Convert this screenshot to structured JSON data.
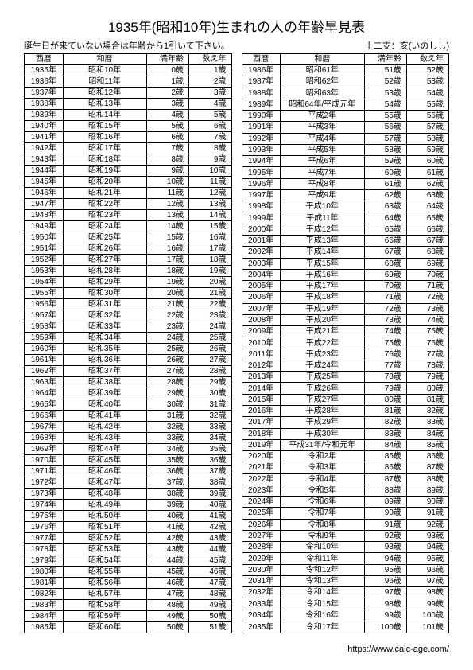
{
  "title": "1935年(昭和10年)生まれの人の年齢早見表",
  "subtitle_left": "誕生日が来ていない場合は年齢から1引いて下さい。",
  "subtitle_right": "十二支：亥(いのしし)",
  "footer": "https://www.calc-age.com/",
  "headers": {
    "seireki": "西暦",
    "wareki": "和暦",
    "man": "満年齢",
    "kazoe": "数え年"
  },
  "left_rows": [
    [
      "1935年",
      "昭和10年",
      "0歳",
      "1歳"
    ],
    [
      "1936年",
      "昭和11年",
      "1歳",
      "2歳"
    ],
    [
      "1937年",
      "昭和12年",
      "2歳",
      "3歳"
    ],
    [
      "1938年",
      "昭和13年",
      "3歳",
      "4歳"
    ],
    [
      "1939年",
      "昭和14年",
      "4歳",
      "5歳"
    ],
    [
      "1940年",
      "昭和15年",
      "5歳",
      "6歳"
    ],
    [
      "1941年",
      "昭和16年",
      "6歳",
      "7歳"
    ],
    [
      "1942年",
      "昭和17年",
      "7歳",
      "8歳"
    ],
    [
      "1943年",
      "昭和18年",
      "8歳",
      "9歳"
    ],
    [
      "1944年",
      "昭和19年",
      "9歳",
      "10歳"
    ],
    [
      "1945年",
      "昭和20年",
      "10歳",
      "11歳"
    ],
    [
      "1946年",
      "昭和21年",
      "11歳",
      "12歳"
    ],
    [
      "1947年",
      "昭和22年",
      "12歳",
      "13歳"
    ],
    [
      "1948年",
      "昭和23年",
      "13歳",
      "14歳"
    ],
    [
      "1949年",
      "昭和24年",
      "14歳",
      "15歳"
    ],
    [
      "1950年",
      "昭和25年",
      "15歳",
      "16歳"
    ],
    [
      "1951年",
      "昭和26年",
      "16歳",
      "17歳"
    ],
    [
      "1952年",
      "昭和27年",
      "17歳",
      "18歳"
    ],
    [
      "1953年",
      "昭和28年",
      "18歳",
      "19歳"
    ],
    [
      "1954年",
      "昭和29年",
      "19歳",
      "20歳"
    ],
    [
      "1955年",
      "昭和30年",
      "20歳",
      "21歳"
    ],
    [
      "1956年",
      "昭和31年",
      "21歳",
      "22歳"
    ],
    [
      "1957年",
      "昭和32年",
      "22歳",
      "23歳"
    ],
    [
      "1958年",
      "昭和33年",
      "23歳",
      "24歳"
    ],
    [
      "1959年",
      "昭和34年",
      "24歳",
      "25歳"
    ],
    [
      "1960年",
      "昭和35年",
      "25歳",
      "26歳"
    ],
    [
      "1961年",
      "昭和36年",
      "26歳",
      "27歳"
    ],
    [
      "1962年",
      "昭和37年",
      "27歳",
      "28歳"
    ],
    [
      "1963年",
      "昭和38年",
      "28歳",
      "29歳"
    ],
    [
      "1964年",
      "昭和39年",
      "29歳",
      "30歳"
    ],
    [
      "1965年",
      "昭和40年",
      "30歳",
      "31歳"
    ],
    [
      "1966年",
      "昭和41年",
      "31歳",
      "32歳"
    ],
    [
      "1967年",
      "昭和42年",
      "32歳",
      "33歳"
    ],
    [
      "1968年",
      "昭和43年",
      "33歳",
      "34歳"
    ],
    [
      "1969年",
      "昭和44年",
      "34歳",
      "35歳"
    ],
    [
      "1970年",
      "昭和45年",
      "35歳",
      "36歳"
    ],
    [
      "1971年",
      "昭和46年",
      "36歳",
      "37歳"
    ],
    [
      "1972年",
      "昭和47年",
      "37歳",
      "38歳"
    ],
    [
      "1973年",
      "昭和48年",
      "38歳",
      "39歳"
    ],
    [
      "1974年",
      "昭和49年",
      "39歳",
      "40歳"
    ],
    [
      "1975年",
      "昭和50年",
      "40歳",
      "41歳"
    ],
    [
      "1976年",
      "昭和51年",
      "41歳",
      "42歳"
    ],
    [
      "1977年",
      "昭和52年",
      "42歳",
      "43歳"
    ],
    [
      "1978年",
      "昭和53年",
      "43歳",
      "44歳"
    ],
    [
      "1979年",
      "昭和54年",
      "44歳",
      "45歳"
    ],
    [
      "1980年",
      "昭和55年",
      "45歳",
      "46歳"
    ],
    [
      "1981年",
      "昭和56年",
      "46歳",
      "47歳"
    ],
    [
      "1982年",
      "昭和57年",
      "47歳",
      "48歳"
    ],
    [
      "1983年",
      "昭和58年",
      "48歳",
      "49歳"
    ],
    [
      "1984年",
      "昭和59年",
      "49歳",
      "50歳"
    ],
    [
      "1985年",
      "昭和60年",
      "50歳",
      "51歳"
    ]
  ],
  "right_rows": [
    [
      "1986年",
      "昭和61年",
      "51歳",
      "52歳"
    ],
    [
      "1987年",
      "昭和62年",
      "52歳",
      "53歳"
    ],
    [
      "1988年",
      "昭和63年",
      "53歳",
      "54歳"
    ],
    [
      "1989年",
      "昭和64年/平成元年",
      "54歳",
      "55歳"
    ],
    [
      "1990年",
      "平成2年",
      "55歳",
      "56歳"
    ],
    [
      "1991年",
      "平成3年",
      "56歳",
      "57歳"
    ],
    [
      "1992年",
      "平成4年",
      "57歳",
      "58歳"
    ],
    [
      "1993年",
      "平成5年",
      "58歳",
      "59歳"
    ],
    [
      "1994年",
      "平成6年",
      "59歳",
      "60歳"
    ],
    [
      "1995年",
      "平成7年",
      "60歳",
      "61歳"
    ],
    [
      "1996年",
      "平成8年",
      "61歳",
      "62歳"
    ],
    [
      "1997年",
      "平成9年",
      "62歳",
      "63歳"
    ],
    [
      "1998年",
      "平成10年",
      "63歳",
      "64歳"
    ],
    [
      "1999年",
      "平成11年",
      "64歳",
      "65歳"
    ],
    [
      "2000年",
      "平成12年",
      "65歳",
      "66歳"
    ],
    [
      "2001年",
      "平成13年",
      "66歳",
      "67歳"
    ],
    [
      "2002年",
      "平成14年",
      "67歳",
      "68歳"
    ],
    [
      "2003年",
      "平成15年",
      "68歳",
      "69歳"
    ],
    [
      "2004年",
      "平成16年",
      "69歳",
      "70歳"
    ],
    [
      "2005年",
      "平成17年",
      "70歳",
      "71歳"
    ],
    [
      "2006年",
      "平成18年",
      "71歳",
      "72歳"
    ],
    [
      "2007年",
      "平成19年",
      "72歳",
      "73歳"
    ],
    [
      "2008年",
      "平成20年",
      "73歳",
      "74歳"
    ],
    [
      "2009年",
      "平成21年",
      "74歳",
      "75歳"
    ],
    [
      "2010年",
      "平成22年",
      "75歳",
      "76歳"
    ],
    [
      "2011年",
      "平成23年",
      "76歳",
      "77歳"
    ],
    [
      "2012年",
      "平成24年",
      "77歳",
      "78歳"
    ],
    [
      "2013年",
      "平成25年",
      "78歳",
      "79歳"
    ],
    [
      "2014年",
      "平成26年",
      "79歳",
      "80歳"
    ],
    [
      "2015年",
      "平成27年",
      "80歳",
      "81歳"
    ],
    [
      "2016年",
      "平成28年",
      "81歳",
      "82歳"
    ],
    [
      "2017年",
      "平成29年",
      "82歳",
      "83歳"
    ],
    [
      "2018年",
      "平成30年",
      "83歳",
      "84歳"
    ],
    [
      "2019年",
      "平成31年/令和元年",
      "84歳",
      "85歳"
    ],
    [
      "2020年",
      "令和2年",
      "85歳",
      "86歳"
    ],
    [
      "2021年",
      "令和3年",
      "86歳",
      "87歳"
    ],
    [
      "2022年",
      "令和4年",
      "87歳",
      "88歳"
    ],
    [
      "2023年",
      "令和5年",
      "88歳",
      "89歳"
    ],
    [
      "2024年",
      "令和6年",
      "89歳",
      "90歳"
    ],
    [
      "2025年",
      "令和7年",
      "90歳",
      "91歳"
    ],
    [
      "2026年",
      "令和8年",
      "91歳",
      "92歳"
    ],
    [
      "2027年",
      "令和9年",
      "92歳",
      "93歳"
    ],
    [
      "2028年",
      "令和10年",
      "93歳",
      "94歳"
    ],
    [
      "2029年",
      "令和11年",
      "94歳",
      "95歳"
    ],
    [
      "2030年",
      "令和12年",
      "95歳",
      "96歳"
    ],
    [
      "2031年",
      "令和13年",
      "96歳",
      "97歳"
    ],
    [
      "2032年",
      "令和14年",
      "97歳",
      "98歳"
    ],
    [
      "2033年",
      "令和15年",
      "98歳",
      "99歳"
    ],
    [
      "2034年",
      "令和16年",
      "99歳",
      "100歳"
    ],
    [
      "2035年",
      "令和17年",
      "100歳",
      "101歳"
    ]
  ]
}
